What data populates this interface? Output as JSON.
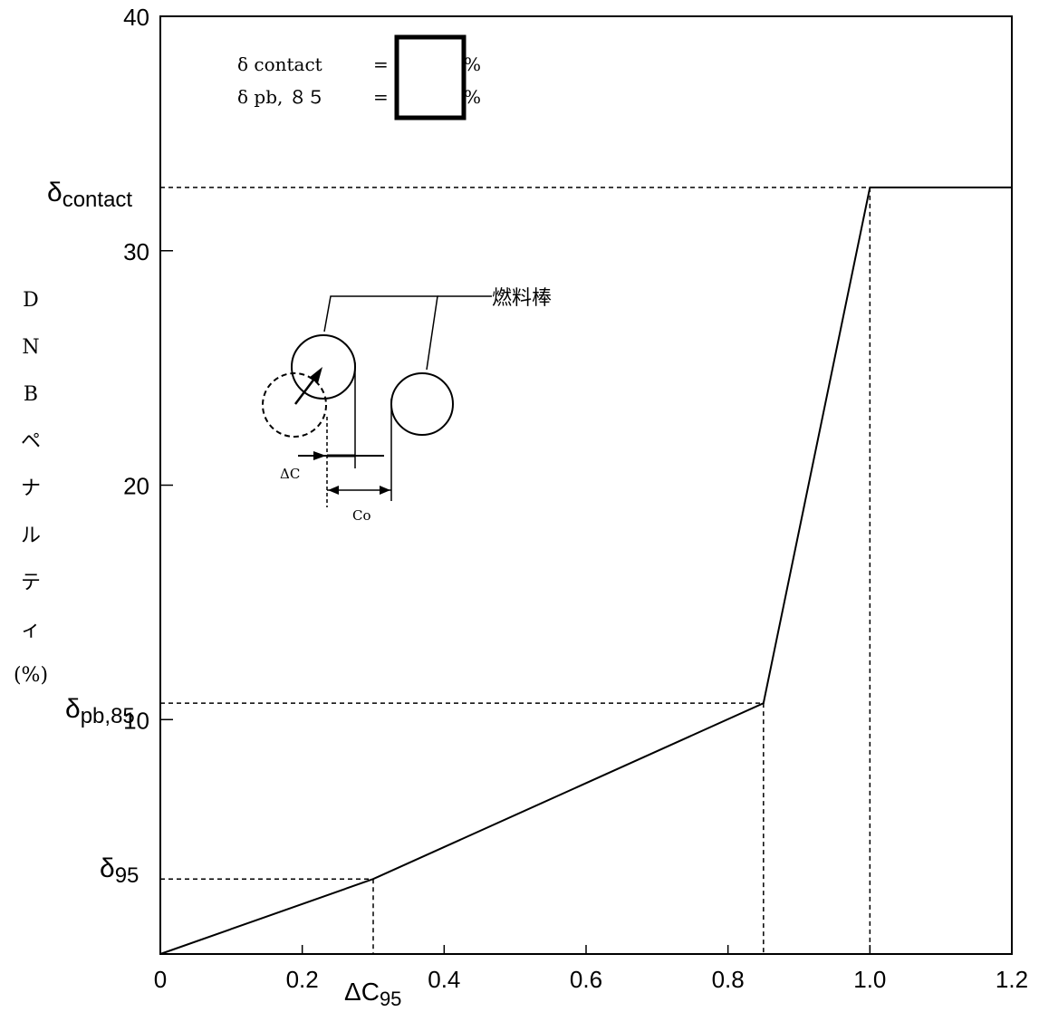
{
  "chart_data": {
    "type": "line",
    "x": [
      0,
      0.3,
      0.85,
      1.0,
      1.2
    ],
    "series": [
      {
        "values": [
          0,
          3.2,
          10.7,
          32.7,
          32.7
        ]
      }
    ],
    "xlim": [
      0,
      1.2
    ],
    "ylim": [
      0,
      40
    ],
    "x_ticks": [
      0,
      0.2,
      0.4,
      0.6,
      0.8,
      1.0,
      1.2
    ],
    "x_tick_labels": [
      "0",
      "0.2",
      "0.4",
      "0.6",
      "0.8",
      "1.0",
      "1.2"
    ],
    "y_ticks": [
      10,
      20,
      30,
      40
    ],
    "y_tick_labels": [
      "10",
      "20",
      "30",
      "40"
    ],
    "xlabel": "ΔC95",
    "ylabel": "ＤＮＢペナルティ(%)",
    "grid": false,
    "reference_lines": [
      {
        "label": "δcontact",
        "y": 32.7,
        "x_end": 1.0
      },
      {
        "label": "δpb,85",
        "y": 10.7,
        "x_end": 0.85
      },
      {
        "label": "δ95",
        "y": 3.2,
        "x_end": 0.3
      }
    ]
  },
  "y_axis_chars": [
    "D",
    "N",
    "B",
    "ペ",
    "ナ",
    "ル",
    "テ",
    "ィ",
    "(%)"
  ],
  "legend": {
    "contact_label": "δ contact",
    "pb_label": "δ pb, ８５",
    "equals": "=",
    "percent": "%"
  },
  "diagram": {
    "rod_label": "燃料棒",
    "dc_label": "ΔC",
    "co_label": "Co"
  },
  "axis_label": {
    "delta": "Δ",
    "c": "C",
    "sub": "95"
  },
  "ref_labels": [
    {
      "main": "δ",
      "sub": "contact"
    },
    {
      "main": "δ",
      "sub": "pb,85"
    },
    {
      "main": "δ",
      "sub": "95"
    }
  ]
}
